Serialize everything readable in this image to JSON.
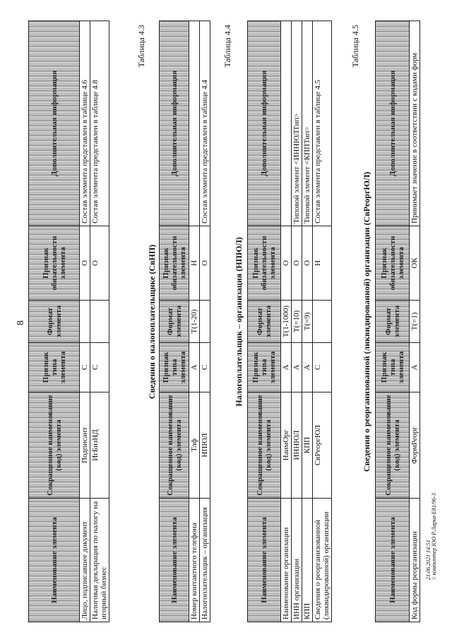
{
  "page_number": "8",
  "stamp": [
    "21.06.2021 14:51",
    "\\\\ компьютер ЮО Р.Ларка-Е81/96-3"
  ],
  "tables": [
    {
      "header": [
        "Наименование элемента",
        "Сокращенное наименование (код) элемента",
        "Признак типа элемента",
        "Формат элемента",
        "Признак обязательности элемента",
        "Дополнительная информация"
      ],
      "rows": [
        [
          "Лицо, подписавшее документ",
          "Подписант",
          "С",
          null,
          "О",
          "Состав элемента представлен в таблице 4.6"
        ],
        [
          "Налоговая декларация по налогу на игорный бизнес",
          "ИгБизНД",
          "С",
          null,
          "О",
          "Состав элемента представлен в таблице 4.8"
        ]
      ]
    },
    {
      "caption": "Таблица 4.3",
      "title": "Сведения о налогоплательщике (СвНП)",
      "header": [
        "Наименование элемента",
        "Сокращенное наименование (код) элемента",
        "Признак типа элемента",
        "Формат элемента",
        "Признак обязательности элемента",
        "Дополнительная информация"
      ],
      "rows": [
        [
          "Номер контактного телефона",
          "Тлф",
          "А",
          "Т(1-20)",
          "Н",
          null
        ],
        [
          "Налогоплательщик – организация",
          "НПЮЛ",
          "С",
          null,
          "О",
          "Состав элемента представлен в таблице 4.4"
        ]
      ]
    },
    {
      "caption": "Таблица 4.4",
      "title": "Налогоплательщик – организация (НПЮЛ)",
      "header": [
        "Наименование элемента",
        "Сокращенное наименование (код) элемента",
        "Признак типа элемента",
        "Формат элемента",
        "Признак обязательности элемента",
        "Дополнительная информация"
      ],
      "rows": [
        [
          "Наименование организации",
          "НаимОрг",
          "А",
          "Т(1-1000)",
          "О",
          null
        ],
        [
          "ИНН организации",
          "ИННЮЛ",
          "А",
          "Т(=10)",
          "О",
          "Типовой элемент <ИННЮЛТип>"
        ],
        [
          "КПП",
          "КПП",
          "А",
          "Т(=9)",
          "О",
          "Типовой элемент <КППТип>"
        ],
        [
          "Сведения о реорганизованной (ликвидированной) организации",
          "СвРеоргЮЛ",
          "С",
          null,
          "Н",
          "Состав элемента представлен в таблице 4.5"
        ]
      ]
    },
    {
      "caption": "Таблица 4.5",
      "title": "Сведения о реорганизованной (ликвидированной) организации (СвРеоргЮЛ)",
      "header": [
        "Наименование элемента",
        "Сокращенное наименование (код) элемента",
        "Признак типа элемента",
        "Формат элемента",
        "Признак обязательности элемента",
        "Дополнительная информация"
      ],
      "rows": [
        [
          "Код формы реорганизации",
          "ФормРеорг",
          "А",
          "Т(=1)",
          "ОК",
          "Принимает значение в соответствии с кодами форм"
        ]
      ]
    }
  ]
}
